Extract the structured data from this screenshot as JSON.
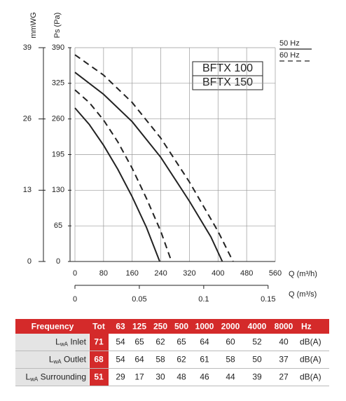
{
  "chart_data": {
    "type": "line",
    "x_label": "Q (m³/h)",
    "x2_label": "Q (m³/s)",
    "y_label": "Ps (Pa)",
    "y2_label": "mmWG",
    "xlim": [
      0,
      560
    ],
    "xticks": [
      0,
      80,
      160,
      240,
      320,
      400,
      480,
      560
    ],
    "x2lim": [
      0,
      0.15556
    ],
    "x2ticks": [
      0,
      0.05,
      0.1,
      0.15
    ],
    "ylim": [
      0,
      390
    ],
    "yticks": [
      0,
      65,
      130,
      195,
      260,
      325,
      390
    ],
    "y2lim": [
      0,
      39
    ],
    "y2ticks": [
      0,
      13,
      26,
      39
    ],
    "grid": true,
    "models": [
      "BFTX 100",
      "BFTX 150"
    ],
    "legend": [
      {
        "label": "50 Hz",
        "dashed": false
      },
      {
        "label": "60 Hz",
        "dashed": true
      }
    ],
    "series": [
      {
        "color": "#222222",
        "dashed": false,
        "x": [
          0,
          40,
          80,
          120,
          160,
          200,
          237
        ],
        "values": [
          280,
          250,
          212,
          168,
          118,
          62,
          0
        ]
      },
      {
        "color": "#222222",
        "dashed": true,
        "x": [
          0,
          40,
          80,
          120,
          160,
          200,
          240,
          270
        ],
        "values": [
          313,
          290,
          258,
          218,
          170,
          115,
          55,
          0
        ]
      },
      {
        "color": "#222222",
        "dashed": false,
        "x": [
          0,
          80,
          160,
          240,
          320,
          380,
          412
        ],
        "values": [
          345,
          305,
          255,
          190,
          110,
          45,
          0
        ]
      },
      {
        "color": "#222222",
        "dashed": true,
        "x": [
          0,
          80,
          160,
          240,
          320,
          400,
          442
        ],
        "values": [
          377,
          340,
          290,
          225,
          145,
          55,
          0
        ]
      }
    ]
  },
  "table": {
    "header": [
      "Frequency",
      "Tot",
      "63",
      "125",
      "250",
      "500",
      "1000",
      "2000",
      "4000",
      "8000",
      "Hz"
    ],
    "rows": [
      {
        "main": "L",
        "sub": "wA",
        "text": " Inlet",
        "cells": [
          "71",
          "54",
          "65",
          "62",
          "65",
          "64",
          "60",
          "52",
          "40"
        ],
        "unit": "dB(A)"
      },
      {
        "main": "L",
        "sub": "wA",
        "text": " Outlet",
        "cells": [
          "68",
          "54",
          "64",
          "58",
          "62",
          "61",
          "58",
          "50",
          "37"
        ],
        "unit": "dB(A)"
      },
      {
        "main": "L",
        "sub": "wA",
        "text": " Surrounding",
        "cells": [
          "51",
          "29",
          "17",
          "30",
          "48",
          "46",
          "44",
          "39",
          "27"
        ],
        "unit": "dB(A)"
      }
    ]
  }
}
